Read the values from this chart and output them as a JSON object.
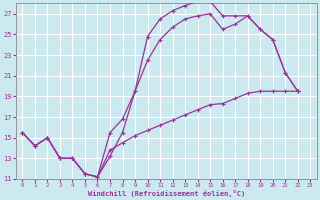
{
  "bg_color": "#cce9f0",
  "grid_color": "#ffffff",
  "line_color": "#993399",
  "xlabel": "Windchill (Refroidissement éolien,°C)",
  "xlim": [
    -0.5,
    23.5
  ],
  "ylim": [
    11,
    28
  ],
  "yticks": [
    11,
    13,
    15,
    17,
    19,
    21,
    23,
    25,
    27
  ],
  "xticks": [
    0,
    1,
    2,
    3,
    4,
    5,
    6,
    7,
    8,
    9,
    10,
    11,
    12,
    13,
    14,
    15,
    16,
    17,
    18,
    19,
    20,
    21,
    22,
    23
  ],
  "line1_x": [
    0,
    1,
    2,
    3,
    4,
    5,
    6,
    7,
    8,
    9,
    10,
    11,
    12,
    13,
    14,
    15,
    16,
    17,
    18,
    19,
    20,
    21,
    22,
    23
  ],
  "line1_y": [
    15.5,
    14.2,
    15.0,
    13.0,
    13.0,
    11.5,
    11.2,
    13.2,
    15.5,
    19.5,
    24.8,
    26.5,
    27.3,
    27.8,
    28.2,
    28.2,
    26.8,
    26.8,
    26.8,
    25.5,
    24.5,
    21.3,
    19.5,
    null
  ],
  "line2_x": [
    0,
    1,
    2,
    3,
    4,
    5,
    6,
    7,
    8,
    9,
    10,
    11,
    12,
    13,
    14,
    15,
    16,
    17,
    18,
    19,
    20,
    21,
    22,
    23
  ],
  "line2_y": [
    15.5,
    14.2,
    15.0,
    13.0,
    13.0,
    11.5,
    11.2,
    15.5,
    16.8,
    19.5,
    22.5,
    24.5,
    25.7,
    26.5,
    26.8,
    27.0,
    25.5,
    26.0,
    26.8,
    25.5,
    24.5,
    21.3,
    19.5,
    null
  ],
  "line3_x": [
    0,
    1,
    2,
    3,
    4,
    5,
    6,
    7,
    8,
    9,
    10,
    11,
    12,
    13,
    14,
    15,
    16,
    17,
    18,
    19,
    20,
    21,
    22,
    23
  ],
  "line3_y": [
    15.5,
    14.2,
    15.0,
    13.0,
    13.0,
    11.5,
    11.2,
    13.8,
    14.5,
    15.2,
    15.7,
    16.2,
    16.7,
    17.2,
    17.7,
    18.2,
    18.3,
    18.8,
    19.3,
    19.5,
    19.5,
    19.5,
    19.5,
    null
  ]
}
